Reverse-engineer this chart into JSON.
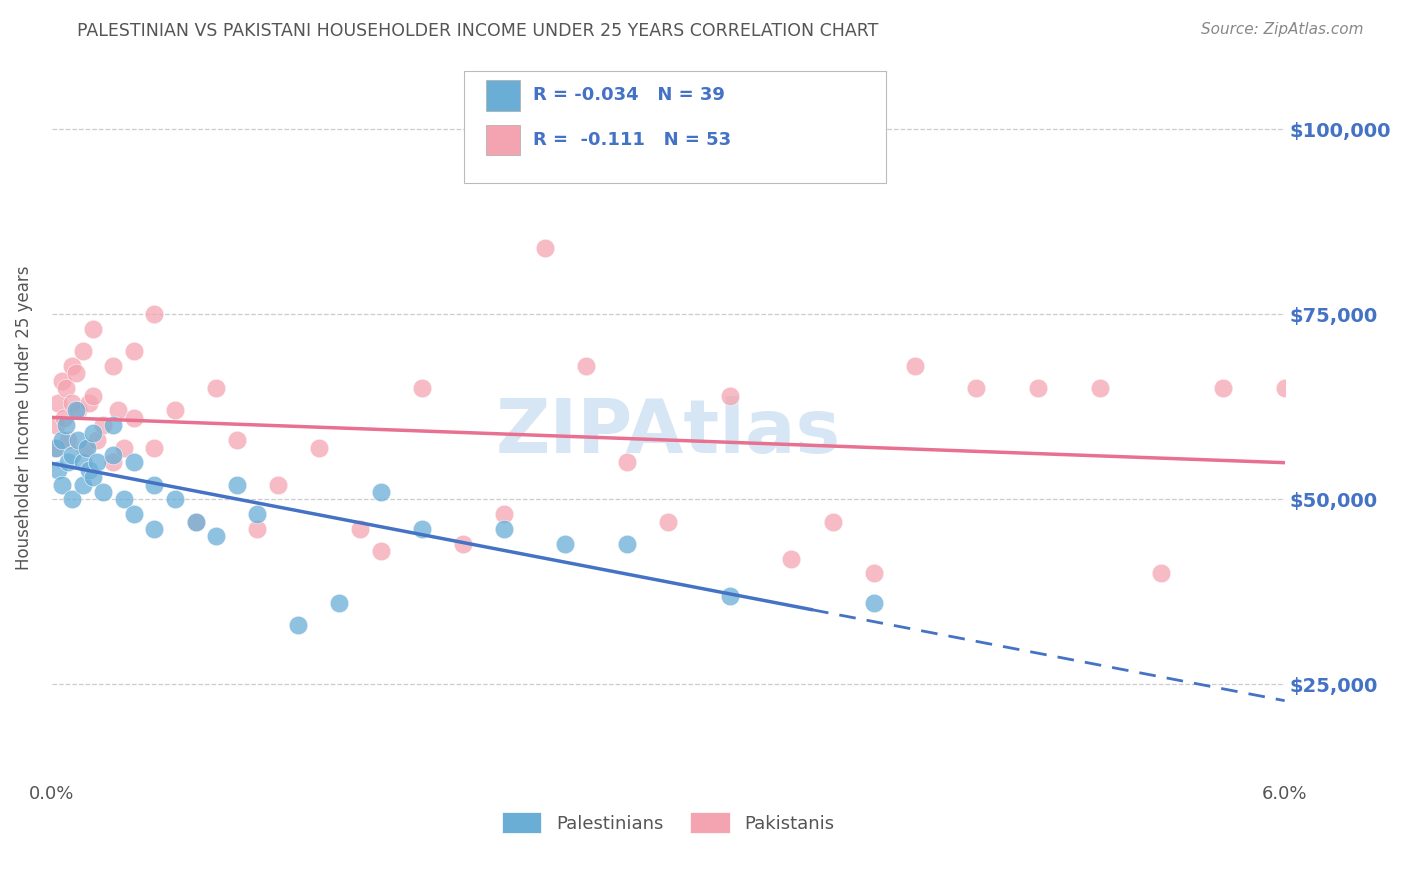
{
  "title": "PALESTINIAN VS PAKISTANI HOUSEHOLDER INCOME UNDER 25 YEARS CORRELATION CHART",
  "source": "Source: ZipAtlas.com",
  "xlabel": "",
  "ylabel": "Householder Income Under 25 years",
  "xlim": [
    0.0,
    0.06
  ],
  "ylim": [
    12000,
    110000
  ],
  "ytick_positions": [
    25000,
    50000,
    75000,
    100000
  ],
  "ytick_labels": [
    "$25,000",
    "$50,000",
    "$75,000",
    "$100,000"
  ],
  "legend_entries": [
    {
      "label": "Palestinians",
      "color": "#6aaed6",
      "R": "-0.034",
      "N": "39"
    },
    {
      "label": "Pakistanis",
      "color": "#f4a4b0",
      "R": "-0.111",
      "N": "53"
    }
  ],
  "palestinians_x": [
    0.0002,
    0.0003,
    0.0005,
    0.0005,
    0.0007,
    0.0008,
    0.001,
    0.001,
    0.0012,
    0.0013,
    0.0015,
    0.0015,
    0.0017,
    0.0018,
    0.002,
    0.002,
    0.0022,
    0.0025,
    0.003,
    0.003,
    0.0035,
    0.004,
    0.004,
    0.005,
    0.005,
    0.006,
    0.007,
    0.008,
    0.009,
    0.01,
    0.012,
    0.014,
    0.016,
    0.018,
    0.022,
    0.025,
    0.028,
    0.033,
    0.04
  ],
  "palestinians_y": [
    57000,
    54000,
    58000,
    52000,
    60000,
    55000,
    56000,
    50000,
    62000,
    58000,
    55000,
    52000,
    57000,
    54000,
    59000,
    53000,
    55000,
    51000,
    60000,
    56000,
    50000,
    55000,
    48000,
    52000,
    46000,
    50000,
    47000,
    45000,
    52000,
    48000,
    33000,
    36000,
    51000,
    46000,
    46000,
    44000,
    44000,
    37000,
    36000
  ],
  "pakistanis_x": [
    0.0001,
    0.0002,
    0.0003,
    0.0005,
    0.0006,
    0.0007,
    0.0008,
    0.001,
    0.001,
    0.0012,
    0.0013,
    0.0015,
    0.0016,
    0.0018,
    0.002,
    0.002,
    0.0022,
    0.0025,
    0.003,
    0.003,
    0.0032,
    0.0035,
    0.004,
    0.004,
    0.005,
    0.005,
    0.006,
    0.007,
    0.008,
    0.009,
    0.01,
    0.011,
    0.013,
    0.015,
    0.016,
    0.018,
    0.02,
    0.022,
    0.024,
    0.026,
    0.028,
    0.03,
    0.033,
    0.036,
    0.038,
    0.04,
    0.042,
    0.045,
    0.048,
    0.051,
    0.054,
    0.057,
    0.06
  ],
  "pakistanis_y": [
    57000,
    60000,
    63000,
    66000,
    61000,
    65000,
    58000,
    68000,
    63000,
    67000,
    62000,
    70000,
    57000,
    63000,
    73000,
    64000,
    58000,
    60000,
    68000,
    55000,
    62000,
    57000,
    70000,
    61000,
    75000,
    57000,
    62000,
    47000,
    65000,
    58000,
    46000,
    52000,
    57000,
    46000,
    43000,
    65000,
    44000,
    48000,
    84000,
    68000,
    55000,
    47000,
    64000,
    42000,
    47000,
    40000,
    68000,
    65000,
    65000,
    65000,
    40000,
    65000,
    65000
  ],
  "pal_line_color": "#4472c4",
  "pak_line_color": "#e87090",
  "background_color": "#ffffff",
  "grid_color": "#cccccc",
  "watermark_color": "#a8c8e8",
  "title_color": "#555555",
  "axis_label_color": "#555555",
  "tick_label_color_y": "#4472c4",
  "tick_label_color_x": "#555555"
}
